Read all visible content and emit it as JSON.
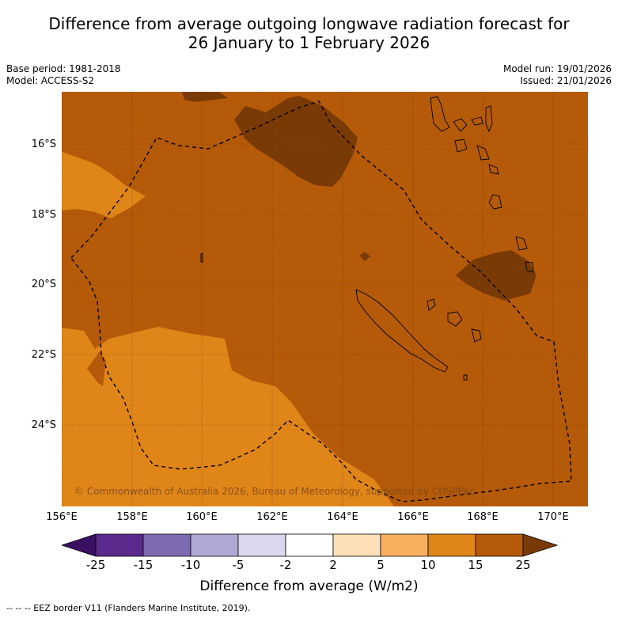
{
  "title_line1": "Difference from average outgoing longwave radiation forecast for",
  "title_line2": "26 January to 1 February 2026",
  "base_period": "Base period: 1981-2018",
  "model": "Model: ACCESS-S2",
  "model_run": "Model run: 19/01/2026",
  "issued": "Issued: 21/01/2026",
  "copyright": "© Commonwealth of Australia 2026, Bureau of Meteorology, supported by COSPPac",
  "lat_labels": [
    "16°S",
    "18°S",
    "20°S",
    "22°S",
    "24°S"
  ],
  "lon_labels": [
    "156°E",
    "158°E",
    "160°E",
    "162°E",
    "164°E",
    "166°E",
    "168°E",
    "170°E"
  ],
  "colorbar": {
    "ticks": [
      "-25",
      "-15",
      "-10",
      "-5",
      "-2",
      "2",
      "5",
      "10",
      "15",
      "25"
    ],
    "colors": [
      "#3a1060",
      "#5a2a8c",
      "#7e6ab0",
      "#b0a8d4",
      "#d9d8ec",
      "#ffffff",
      "#fde0b8",
      "#f9b05e",
      "#e08518",
      "#b55a08",
      "#7a3a06"
    ],
    "title": "Difference from average (W/m2)"
  },
  "footer": "--  --  -- EEZ border V11 (Flanders Marine Institute, 2019).",
  "legend_colors": {
    "dominant_10_15": "#e08518",
    "dominant_15_25": "#b55a08",
    "above_25": "#7a3a06"
  }
}
